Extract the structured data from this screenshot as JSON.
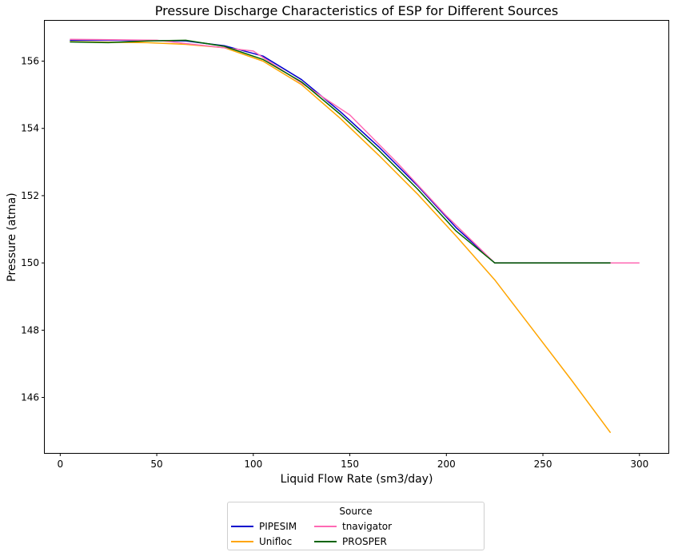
{
  "chart_data": {
    "type": "line",
    "title": "Pressure Discharge Characteristics of ESP for Different Sources",
    "xlabel": "Liquid Flow Rate (sm3/day)",
    "ylabel": "Pressure (atma)",
    "xlim": [
      -8,
      315
    ],
    "ylim": [
      144.35,
      157.2
    ],
    "xticks": [
      0,
      50,
      100,
      150,
      200,
      250,
      300
    ],
    "yticks": [
      146,
      148,
      150,
      152,
      154,
      156
    ],
    "grid": false,
    "legend": {
      "title": "Source",
      "placement": "bottom-center",
      "columns": 3
    },
    "series": [
      {
        "name": "PIPESIM",
        "color": "#0000cd",
        "x": [
          5,
          25,
          45,
          65,
          85,
          105,
          125,
          145,
          165,
          185,
          205,
          225,
          245,
          265,
          285
        ],
        "y": [
          156.62,
          156.62,
          156.61,
          156.6,
          156.46,
          156.15,
          155.45,
          154.5,
          153.45,
          152.3,
          151.05,
          150.0,
          150.0,
          150.0,
          150.0
        ]
      },
      {
        "name": "Unifloc",
        "color": "#ffa500",
        "x": [
          5,
          25,
          45,
          65,
          85,
          105,
          125,
          145,
          165,
          185,
          205,
          225,
          245,
          265,
          285
        ],
        "y": [
          156.58,
          156.56,
          156.55,
          156.5,
          156.4,
          156.0,
          155.3,
          154.3,
          153.2,
          152.05,
          150.8,
          149.5,
          148.0,
          146.5,
          144.95
        ]
      },
      {
        "name": "tnavigator",
        "color": "#ff69b4",
        "x": [
          5,
          50,
          100,
          150,
          175,
          200,
          225,
          250,
          275,
          300
        ],
        "y": [
          156.65,
          156.62,
          156.3,
          154.4,
          152.95,
          151.4,
          150.0,
          150.0,
          150.0,
          150.0
        ]
      },
      {
        "name": "PROSPER",
        "color": "#006400",
        "x": [
          5,
          25,
          45,
          65,
          85,
          105,
          125,
          145,
          165,
          185,
          205,
          225,
          245,
          265,
          285
        ],
        "y": [
          156.57,
          156.55,
          156.6,
          156.62,
          156.44,
          156.05,
          155.38,
          154.42,
          153.35,
          152.2,
          150.95,
          150.0,
          150.0,
          150.0,
          150.0
        ]
      }
    ]
  }
}
